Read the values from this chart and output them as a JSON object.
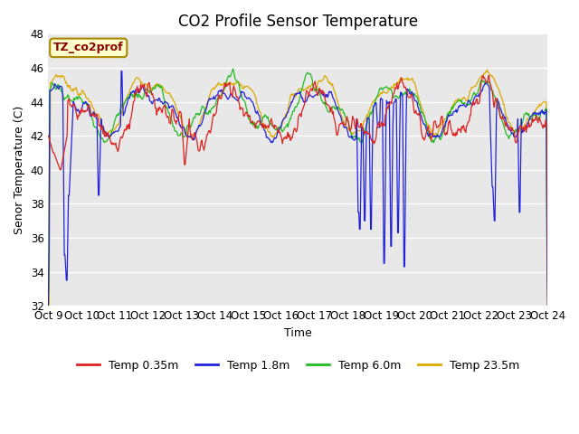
{
  "title": "CO2 Profile Sensor Temperature",
  "ylabel": "Senor Temperature (C)",
  "xlabel": "Time",
  "ylim": [
    32,
    48
  ],
  "yticks": [
    32,
    34,
    36,
    38,
    40,
    42,
    44,
    46,
    48
  ],
  "xtick_labels": [
    "Oct 9",
    "Oct 10",
    "Oct 11",
    "Oct 12",
    "Oct 13",
    "Oct 14",
    "Oct 15",
    "Oct 16",
    "Oct 17",
    "Oct 18",
    "Oct 19",
    "Oct 20",
    "Oct 21",
    "Oct 22",
    "Oct 23",
    "Oct 24"
  ],
  "colors": {
    "red": "#dd2222",
    "blue": "#2222dd",
    "green": "#22bb22",
    "orange": "#ddaa00"
  },
  "legend_labels": [
    "Temp 0.35m",
    "Temp 1.8m",
    "Temp 6.0m",
    "Temp 23.5m"
  ],
  "annotation_text": "TZ_co2prof",
  "annotation_bg": "#ffffcc",
  "annotation_border": "#aa8800",
  "bg_color": "#e8e8e8",
  "title_fontsize": 12,
  "axis_fontsize": 9,
  "tick_fontsize": 8.5
}
